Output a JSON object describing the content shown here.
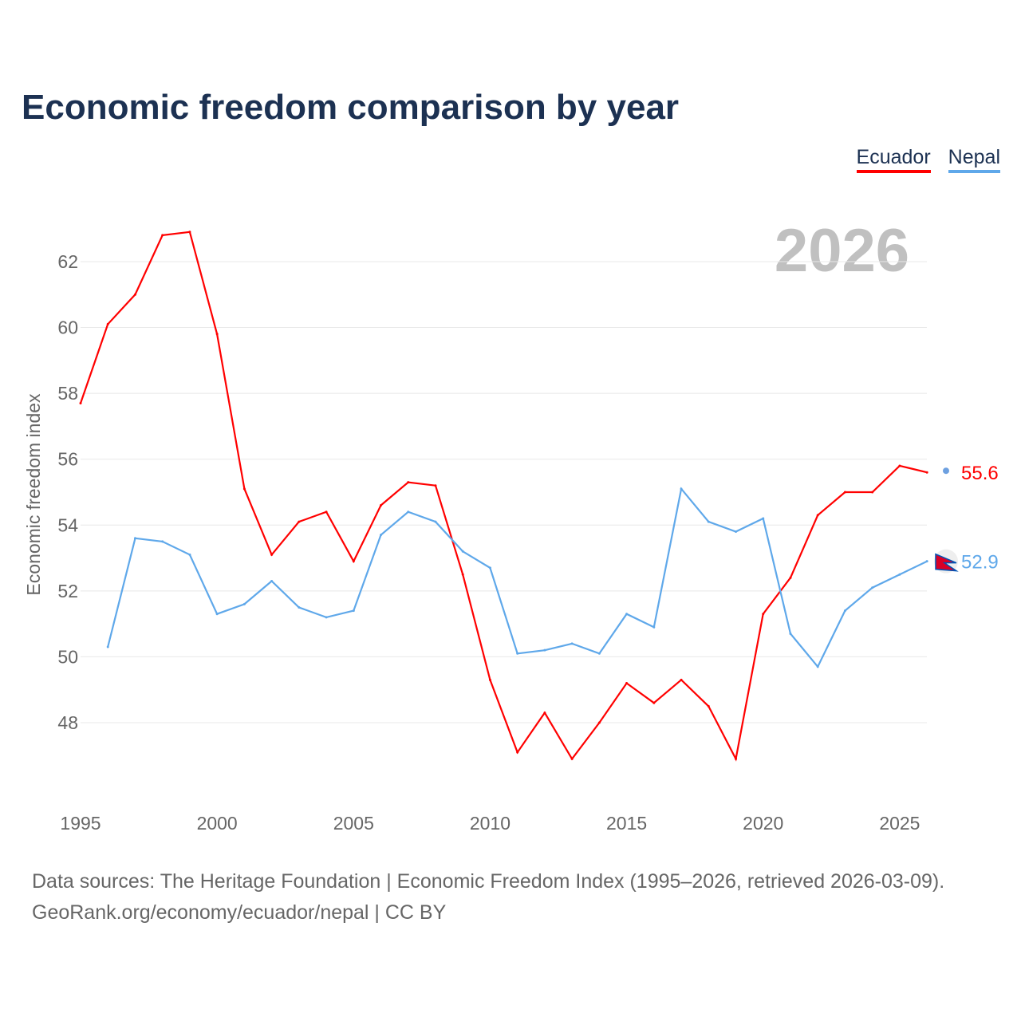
{
  "title": "Economic freedom comparison by year",
  "legend": [
    {
      "name": "Ecuador",
      "color": "#ff0000"
    },
    {
      "name": "Nepal",
      "color": "#5fa8ea"
    }
  ],
  "footer": {
    "line1": "Data sources: The Heritage Foundation | Economic Freedom Index (1995–2026, retrieved 2026-03-09).",
    "line2": "GeoRank.org/economy/ecuador/nepal | CC BY"
  },
  "chart_data": {
    "type": "line",
    "title": "Economic freedom comparison by year",
    "ylabel": "Economic freedom index",
    "xlabel": "",
    "year_watermark": "2026",
    "x": [
      1995,
      1996,
      1997,
      1998,
      1999,
      2000,
      2001,
      2002,
      2003,
      2004,
      2005,
      2006,
      2007,
      2008,
      2009,
      2010,
      2011,
      2012,
      2013,
      2014,
      2015,
      2016,
      2017,
      2018,
      2019,
      2020,
      2021,
      2022,
      2023,
      2024,
      2025,
      2026
    ],
    "xticks": [
      "1995",
      "2000",
      "2005",
      "2010",
      "2015",
      "2020",
      "2025"
    ],
    "yticks": [
      "48",
      "50",
      "52",
      "54",
      "56",
      "58",
      "60",
      "62"
    ],
    "xlim": [
      1995,
      2026
    ],
    "ylim": [
      45.4,
      63.3
    ],
    "grid": true,
    "legend_position": "top-right",
    "series": [
      {
        "name": "Ecuador",
        "color": "#ff0000",
        "end_label": "55.6",
        "values": [
          57.7,
          60.1,
          61.0,
          62.8,
          62.9,
          59.8,
          55.1,
          53.1,
          54.1,
          54.4,
          52.9,
          54.6,
          55.3,
          55.2,
          52.5,
          49.3,
          47.1,
          48.3,
          46.9,
          48.0,
          49.2,
          48.6,
          49.3,
          48.5,
          46.9,
          51.3,
          52.4,
          54.3,
          55.0,
          55.0,
          55.8,
          55.6
        ]
      },
      {
        "name": "Nepal",
        "color": "#5fa8ea",
        "end_label": "52.9",
        "values": [
          null,
          50.3,
          53.6,
          53.5,
          53.1,
          51.3,
          51.6,
          52.3,
          51.5,
          51.2,
          51.4,
          53.7,
          54.4,
          54.1,
          53.2,
          52.7,
          50.1,
          50.2,
          50.4,
          50.1,
          51.3,
          50.9,
          55.1,
          54.1,
          53.8,
          54.2,
          50.7,
          49.7,
          51.4,
          52.1,
          52.5,
          52.9
        ]
      }
    ]
  }
}
